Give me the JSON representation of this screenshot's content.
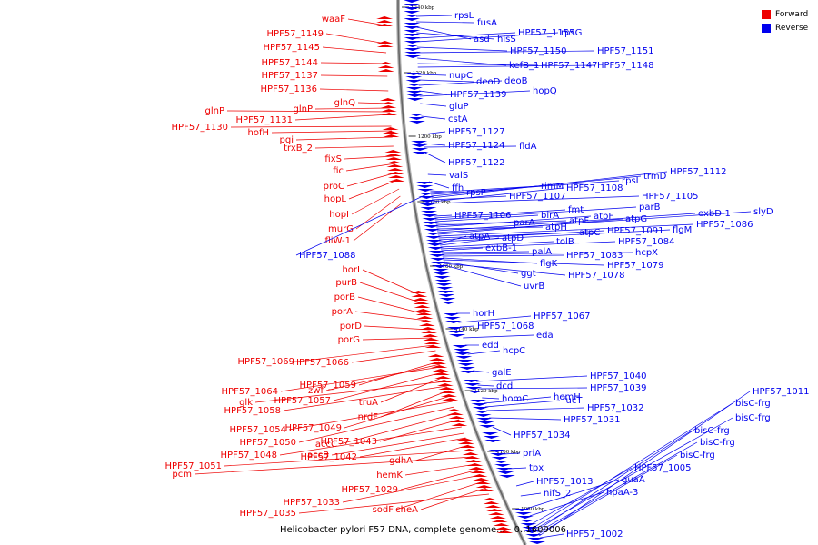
{
  "legend": {
    "forward": {
      "label": "Forward",
      "color": "#ee0000"
    },
    "reverse": {
      "label": "Reverse",
      "color": "#0000ee"
    }
  },
  "caption": "Helicobacter pylori F57 DNA, complete genome... - 0..1609006",
  "ticks": [
    "1240 kbp",
    "1220 kbp",
    "1200 kbp",
    "1180 kbp",
    "1160 kbp",
    "1140 kbp",
    "1120 kbp",
    "1100 kbp",
    "1080 kbp"
  ],
  "forward_labels": [
    "waaF",
    "HPF57_1149",
    "HPF57_1145",
    "HPF57_1144",
    "HPF57_1137",
    "HPF57_1136",
    "glnQ",
    "glnP",
    "glnP",
    "HPF57_1131",
    "HPF57_1130",
    "hofH",
    "pgi",
    "trxB_2",
    "fixS",
    "fic",
    "proC",
    "hopL",
    "hopI",
    "murG",
    "fliW-1",
    "horI",
    "purB",
    "porB",
    "porA",
    "porD",
    "porG",
    "HPF57_1069",
    "HPF57_1066",
    "HPF57_1059",
    "zwf",
    "HPF57_1064",
    "HPF57_1057",
    "truA",
    "glk",
    "HPF57_1058",
    "nrdF",
    "HPF57_1049",
    "HPF57_1054",
    "HPF57_1050",
    "accC",
    "HPF57_1043",
    "HPF57_1048",
    "accB",
    "HPF57_1042",
    "gdhA",
    "HPF57_1051",
    "pcm",
    "hemK",
    "HPF57_1029",
    "HPF57_1033",
    "sodF",
    "cheA",
    "HPF57_1035"
  ],
  "reverse_labels": [
    "rpsL",
    "fusA",
    "asd",
    "hisS",
    "HPF57_1155",
    "rpsG",
    "HPF57_1150",
    "HPF57_1151",
    "kefB_1",
    "HPF57_1147",
    "HPF57_1148",
    "nupC",
    "deoD",
    "deoB",
    "HPF57_1139",
    "hopQ",
    "gluP",
    "cstA",
    "HPF57_1127",
    "HPF57_1124",
    "fldA",
    "HPF57_1122",
    "valS",
    "ffh",
    "rpsP",
    "rimM",
    "rpsI",
    "trmD",
    "HPF57_1112",
    "HPF57_1107",
    "HPF57_1108",
    "HPF57_1105",
    "HPF57_1106",
    "fmt",
    "parB",
    "birA",
    "parA",
    "atpF",
    "atpF",
    "atpH",
    "exbD-1",
    "slyD",
    "atpG",
    "HPF57_1086",
    "atpC",
    "HPF57_1091",
    "flgM",
    "atpA",
    "atpD",
    "tolB",
    "HPF57_1084",
    "exbB-1",
    "palA",
    "hcpX",
    "HPF57_1083",
    "flgK",
    "HPF57_1079",
    "ggt",
    "HPF57_1078",
    "uvrB",
    "HPF57_1088",
    "horH",
    "HPF57_1067",
    "HPF57_1068",
    "eda",
    "edd",
    "hcpC",
    "galE",
    "HPF57_1040",
    "dcd",
    "HPF57_1039",
    "homC",
    "hemH",
    "fucT",
    "HPF57_1032",
    "HPF57_1031",
    "HPF57_1034",
    "priA",
    "tpx",
    "HPF57_1013",
    "nifS_2",
    "guaA",
    "hpaA-3",
    "HPF57_1005",
    "bisC-frg",
    "bisC-frg",
    "bisC-frg",
    "bisC-frg",
    "bisC-frg",
    "HPF57_1011",
    "HPF57_1002"
  ]
}
